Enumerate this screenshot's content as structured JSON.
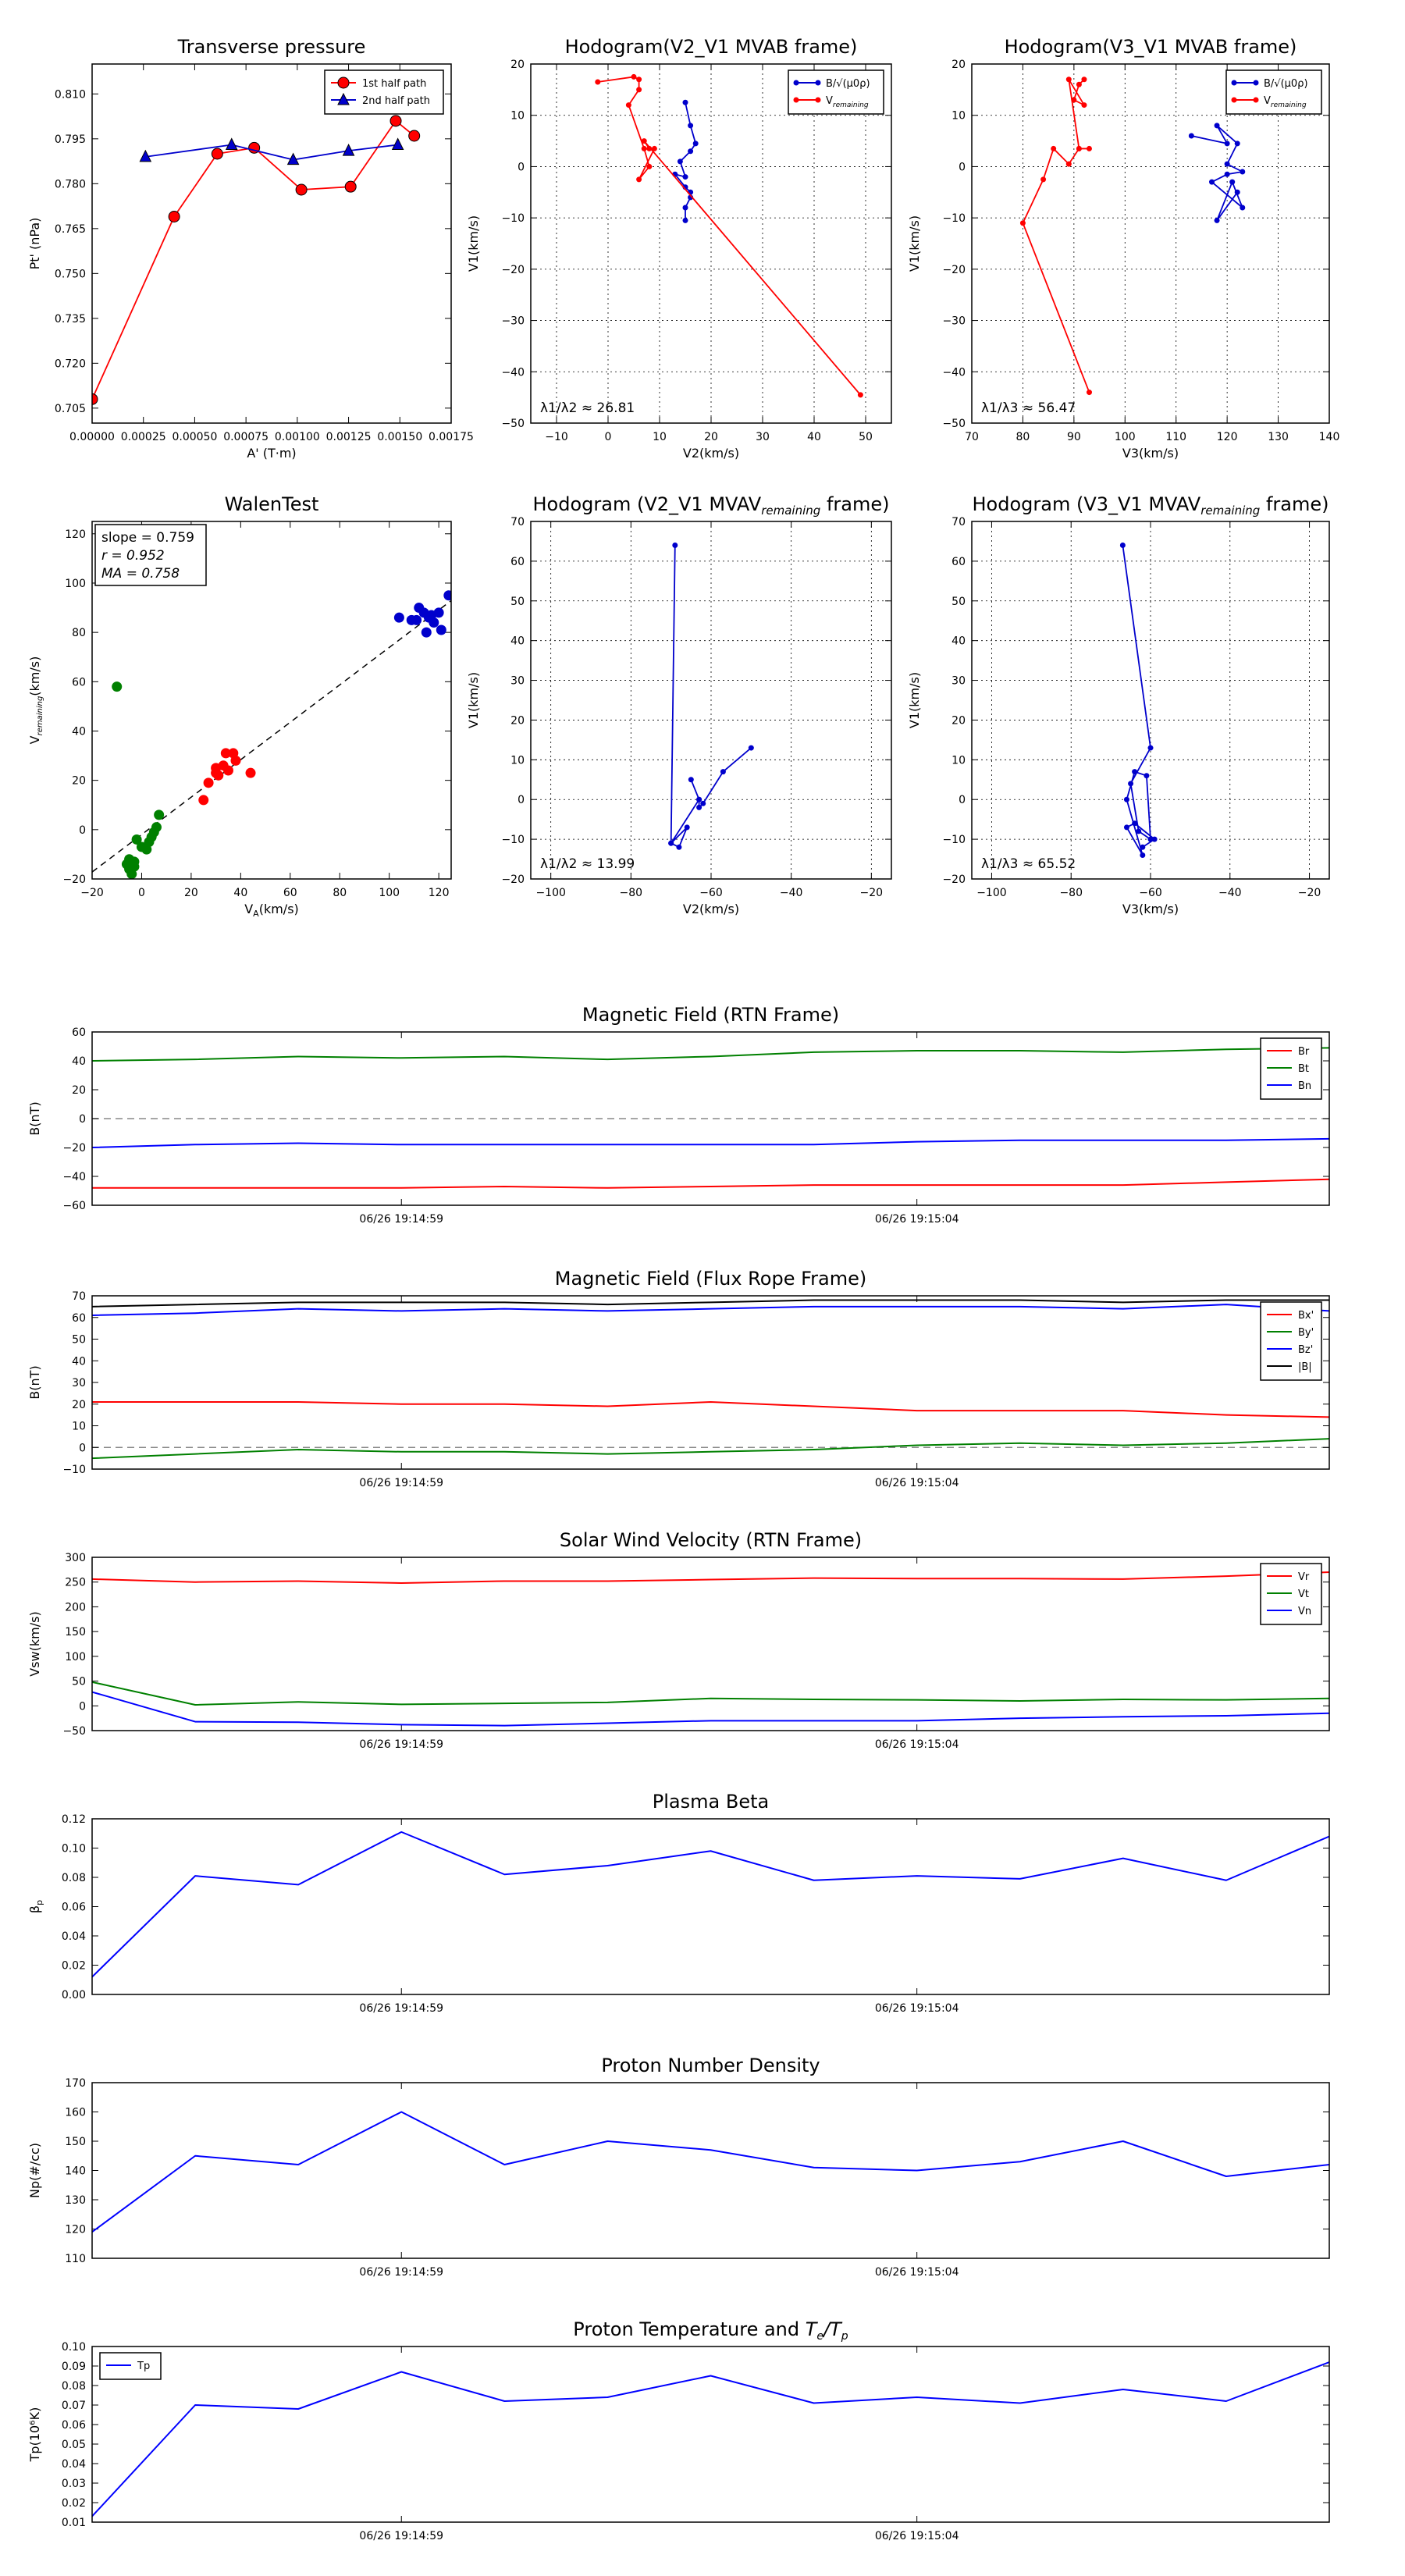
{
  "chart_data": [
    {
      "id": "tp",
      "type": "line",
      "title": "Transverse pressure",
      "xlabel": "A' (T·m)",
      "ylabel": "Pt' (nPa)",
      "xlim": [
        0,
        0.00175
      ],
      "ylim": [
        0.7,
        0.82
      ],
      "xticks": [
        0,
        0.00025,
        0.0005,
        0.00075,
        0.001,
        0.00125,
        0.0015,
        0.00175
      ],
      "xticklabels": [
        "0.00000",
        "0.00025",
        "0.00050",
        "0.00075",
        "0.00100",
        "0.00125",
        "0.00150",
        "0.00175"
      ],
      "yticks": [
        0.705,
        0.72,
        0.735,
        0.75,
        0.765,
        0.78,
        0.795,
        0.81
      ],
      "yticklabels": [
        "0.705",
        "0.720",
        "0.735",
        "0.750",
        "0.765",
        "0.780",
        "0.795",
        "0.810"
      ],
      "grid": false,
      "legend": "top-right",
      "series": [
        {
          "name": "1st half path",
          "color": "#ff0000",
          "marker": "circle",
          "x": [
            0,
            0.0004,
            0.00061,
            0.00079,
            0.00102,
            0.00126,
            0.00148,
            0.00157
          ],
          "y": [
            0.708,
            0.769,
            0.79,
            0.792,
            0.778,
            0.779,
            0.801,
            0.796
          ]
        },
        {
          "name": "2nd half path",
          "color": "#0000cc",
          "marker": "triangle",
          "x": [
            0.00026,
            0.00068,
            0.00098,
            0.00125,
            0.00149
          ],
          "y": [
            0.789,
            0.793,
            0.788,
            0.791,
            0.793
          ]
        }
      ]
    },
    {
      "id": "h1",
      "type": "line",
      "title": "Hodogram(V2_V1 MVAB frame)",
      "xlabel": "V2(km/s)",
      "ylabel": "V1(km/s)",
      "xlim": [
        -15,
        55
      ],
      "ylim": [
        -50,
        20
      ],
      "xticks": [
        -10,
        0,
        10,
        20,
        30,
        40,
        50
      ],
      "xticklabels": [
        "−10",
        "0",
        "10",
        "20",
        "30",
        "40",
        "50"
      ],
      "yticks": [
        -50,
        -40,
        -30,
        -20,
        -10,
        0,
        10,
        20
      ],
      "yticklabels": [
        "−50",
        "−40",
        "−30",
        "−20",
        "−10",
        "0",
        "10",
        "20"
      ],
      "grid": true,
      "legend": "top-right",
      "annotation": "λ1/λ2 ≈ 26.81",
      "series": [
        {
          "name": "B/√(μ0ρ)",
          "color": "#0000cc",
          "marker": "dot",
          "x": [
            15,
            16,
            17,
            16,
            14,
            15,
            13,
            15,
            16,
            16,
            15,
            15
          ],
          "y": [
            12.5,
            8,
            4.5,
            3,
            1,
            -2,
            -1.5,
            -4,
            -5,
            -6,
            -8,
            -10.5
          ]
        },
        {
          "name": "V_remaining",
          "color": "#ff0000",
          "marker": "dot",
          "x": [
            -2,
            5,
            6,
            6,
            4,
            7,
            8,
            6,
            9,
            8,
            7,
            49
          ],
          "y": [
            16.5,
            17.5,
            17,
            15,
            12,
            3.5,
            0,
            -2.5,
            3.5,
            3.5,
            5,
            -44.5
          ]
        }
      ]
    },
    {
      "id": "h2",
      "type": "line",
      "title": "Hodogram(V3_V1 MVAB frame)",
      "xlabel": "V3(km/s)",
      "ylabel": "V1(km/s)",
      "xlim": [
        70,
        140
      ],
      "ylim": [
        -50,
        20
      ],
      "xticks": [
        70,
        80,
        90,
        100,
        110,
        120,
        130,
        140
      ],
      "xticklabels": [
        "70",
        "80",
        "90",
        "100",
        "110",
        "120",
        "130",
        "140"
      ],
      "yticks": [
        -50,
        -40,
        -30,
        -20,
        -10,
        0,
        10,
        20
      ],
      "yticklabels": [
        "−50",
        "−40",
        "−30",
        "−20",
        "−10",
        "0",
        "10",
        "20"
      ],
      "grid": true,
      "legend": "top-right",
      "annotation": "λ1/λ3 ≈ 56.47",
      "series": [
        {
          "name": "B/√(μ0ρ)",
          "color": "#0000cc",
          "marker": "dot",
          "x": [
            113,
            120,
            118,
            122,
            120,
            123,
            120,
            117,
            123,
            121,
            118,
            122
          ],
          "y": [
            6,
            4.5,
            8,
            4.5,
            0.5,
            -1,
            -1.5,
            -3,
            -8,
            -3,
            -10.5,
            -5
          ]
        },
        {
          "name": "V_remaining",
          "color": "#ff0000",
          "marker": "dot",
          "x": [
            92,
            91,
            90,
            92,
            89,
            91,
            93,
            91,
            89,
            86,
            84,
            80,
            93
          ],
          "y": [
            17,
            16,
            13,
            12,
            17,
            3.5,
            3.5,
            3.5,
            0.5,
            3.5,
            -2.5,
            -11,
            -44
          ]
        }
      ]
    },
    {
      "id": "walen",
      "type": "scatter",
      "title": "WalenTest",
      "xlabel": "V_A(km/s)",
      "ylabel": "V_remaining(km/s)",
      "xlim": [
        -20,
        125
      ],
      "ylim": [
        -20,
        125
      ],
      "xticks": [
        -20,
        0,
        20,
        40,
        60,
        80,
        100,
        120
      ],
      "xticklabels": [
        "−20",
        "0",
        "20",
        "40",
        "60",
        "80",
        "100",
        "120"
      ],
      "yticks": [
        -20,
        0,
        20,
        40,
        60,
        80,
        100,
        120
      ],
      "yticklabels": [
        "−20",
        "0",
        "20",
        "40",
        "60",
        "80",
        "100",
        "120"
      ],
      "grid": false,
      "stats": [
        "slope = 0.759",
        "r = 0.952",
        "MA = 0.758"
      ],
      "fit": {
        "slope": 0.759,
        "intercept": -2.0
      },
      "series": [
        {
          "name": "green",
          "color": "#008000",
          "x": [
            -10,
            -5,
            -5,
            -3,
            -2,
            0,
            2,
            4,
            5,
            6,
            7,
            -4,
            -6,
            -3,
            3
          ],
          "y": [
            58,
            -12,
            -16,
            -15,
            -4,
            -7,
            -8,
            -3,
            -1,
            1,
            6,
            -18,
            -14,
            -13,
            -5
          ]
        },
        {
          "name": "red",
          "color": "#ff0000",
          "x": [
            25,
            27,
            30,
            30,
            31,
            33,
            34,
            35,
            37,
            38,
            44
          ],
          "y": [
            12,
            19,
            23,
            25,
            22,
            26,
            31,
            24,
            31,
            28,
            23
          ]
        },
        {
          "name": "blue",
          "color": "#0000cc",
          "x": [
            104,
            109,
            111,
            112,
            114,
            115,
            116,
            117,
            118,
            120,
            121,
            124
          ],
          "y": [
            86,
            85,
            85,
            90,
            88,
            80,
            86,
            87,
            84,
            88,
            81,
            95
          ]
        }
      ]
    },
    {
      "id": "h3",
      "type": "line",
      "title": "Hodogram (V2_V1 MVAV_remaining frame)",
      "xlabel": "V2(km/s)",
      "ylabel": "V1(km/s)",
      "xlim": [
        -105,
        -15
      ],
      "ylim": [
        -20,
        70
      ],
      "xticks": [
        -100,
        -80,
        -60,
        -40,
        -20
      ],
      "xticklabels": [
        "−100",
        "−80",
        "−60",
        "−40",
        "−20"
      ],
      "yticks": [
        -20,
        -10,
        0,
        10,
        20,
        30,
        40,
        50,
        60,
        70
      ],
      "yticklabels": [
        "−20",
        "−10",
        "0",
        "10",
        "20",
        "30",
        "40",
        "50",
        "60",
        "70"
      ],
      "grid": true,
      "annotation": "λ1/λ2 ≈ 13.99",
      "series": [
        {
          "name": "path",
          "color": "#0000cc",
          "marker": "dot",
          "x": [
            -69,
            -70,
            -66,
            -68,
            -70,
            -63,
            -65,
            -63,
            -63,
            -62,
            -57,
            -50
          ],
          "y": [
            64,
            -11,
            -7,
            -12,
            -11,
            0,
            5,
            0,
            -2,
            -1,
            7,
            13
          ]
        }
      ]
    },
    {
      "id": "h4",
      "type": "line",
      "title": "Hodogram (V3_V1 MVAV_remaining frame)",
      "xlabel": "V3(km/s)",
      "ylabel": "V1(km/s)",
      "xlim": [
        -105,
        -15
      ],
      "ylim": [
        -20,
        70
      ],
      "xticks": [
        -100,
        -80,
        -60,
        -40,
        -20
      ],
      "xticklabels": [
        "−100",
        "−80",
        "−60",
        "−40",
        "−20"
      ],
      "yticks": [
        -20,
        -10,
        0,
        10,
        20,
        30,
        40,
        50,
        60,
        70
      ],
      "yticklabels": [
        "−20",
        "−10",
        "0",
        "10",
        "20",
        "30",
        "40",
        "50",
        "60",
        "70"
      ],
      "grid": true,
      "annotation": "λ1/λ3 ≈ 65.52",
      "series": [
        {
          "name": "path",
          "color": "#0000cc",
          "marker": "dot",
          "x": [
            -67,
            -60,
            -65,
            -63,
            -60,
            -61,
            -64,
            -66,
            -62,
            -66,
            -64,
            -59,
            -62
          ],
          "y": [
            64,
            13,
            4,
            -8,
            -10,
            6,
            7,
            0,
            -14,
            -7,
            -6,
            -10,
            -12
          ]
        }
      ]
    },
    {
      "id": "mf_rtn",
      "type": "line",
      "title": "Magnetic Field (RTN Frame)",
      "ylabel": "B(nT)",
      "xlim": [
        0,
        12
      ],
      "ylim": [
        -60,
        60
      ],
      "xticks": [
        3,
        8
      ],
      "xticklabels": [
        "06/26 19:14:59",
        "06/26 19:15:04"
      ],
      "yticks": [
        -60,
        -40,
        -20,
        0,
        20,
        40,
        60
      ],
      "yticklabels": [
        "−60",
        "−40",
        "−20",
        "0",
        "20",
        "40",
        "60"
      ],
      "hline": 0,
      "legend": "top-right",
      "series": [
        {
          "name": "Br",
          "color": "#ff0000",
          "y": [
            -48,
            -48,
            -48,
            -48,
            -47,
            -48,
            -47,
            -46,
            -46,
            -46,
            -46,
            -44,
            -42
          ]
        },
        {
          "name": "Bt",
          "color": "#008000",
          "y": [
            40,
            41,
            43,
            42,
            43,
            41,
            43,
            46,
            47,
            47,
            46,
            48,
            49
          ]
        },
        {
          "name": "Bn",
          "color": "#0000ff",
          "y": [
            -20,
            -18,
            -17,
            -18,
            -18,
            -18,
            -18,
            -18,
            -16,
            -15,
            -15,
            -15,
            -14
          ]
        }
      ]
    },
    {
      "id": "mf_fr",
      "type": "line",
      "title": "Magnetic Field (Flux Rope Frame)",
      "ylabel": "B(nT)",
      "xlim": [
        0,
        12
      ],
      "ylim": [
        -10,
        70
      ],
      "xticks": [
        3,
        8
      ],
      "xticklabels": [
        "06/26 19:14:59",
        "06/26 19:15:04"
      ],
      "yticks": [
        -10,
        0,
        10,
        20,
        30,
        40,
        50,
        60,
        70
      ],
      "yticklabels": [
        "−10",
        "0",
        "10",
        "20",
        "30",
        "40",
        "50",
        "60",
        "70"
      ],
      "hline": 0,
      "legend": "top-right",
      "series": [
        {
          "name": "Bx'",
          "color": "#ff0000",
          "y": [
            21,
            21,
            21,
            20,
            20,
            19,
            21,
            19,
            17,
            17,
            17,
            15,
            14
          ]
        },
        {
          "name": "By'",
          "color": "#008000",
          "y": [
            -5,
            -3,
            -1,
            -2,
            -2,
            -3,
            -2,
            -1,
            1,
            2,
            1,
            2,
            4
          ]
        },
        {
          "name": "Bz'",
          "color": "#0000ff",
          "y": [
            61,
            62,
            64,
            63,
            64,
            63,
            64,
            65,
            65,
            65,
            64,
            66,
            63
          ]
        },
        {
          "name": "|B|",
          "color": "#000000",
          "y": [
            65,
            66,
            67,
            67,
            67,
            66,
            67,
            68,
            68,
            68,
            67,
            68,
            68
          ]
        }
      ]
    },
    {
      "id": "vsw",
      "type": "line",
      "title": "Solar Wind Velocity (RTN Frame)",
      "ylabel": "Vsw(km/s)",
      "xlim": [
        0,
        12
      ],
      "ylim": [
        -50,
        300
      ],
      "xticks": [
        3,
        8
      ],
      "xticklabels": [
        "06/26 19:14:59",
        "06/26 19:15:04"
      ],
      "yticks": [
        -50,
        0,
        50,
        100,
        150,
        200,
        250,
        300
      ],
      "yticklabels": [
        "−50",
        "0",
        "50",
        "100",
        "150",
        "200",
        "250",
        "300"
      ],
      "legend": "top-right",
      "series": [
        {
          "name": "Vr",
          "color": "#ff0000",
          "y": [
            256,
            250,
            252,
            248,
            252,
            252,
            255,
            258,
            257,
            257,
            256,
            262,
            270
          ]
        },
        {
          "name": "Vt",
          "color": "#008000",
          "y": [
            48,
            2,
            8,
            3,
            5,
            7,
            15,
            13,
            12,
            10,
            13,
            12,
            15
          ]
        },
        {
          "name": "Vn",
          "color": "#0000ff",
          "y": [
            28,
            -32,
            -33,
            -38,
            -40,
            -35,
            -30,
            -30,
            -30,
            -25,
            -22,
            -20,
            -15
          ]
        }
      ]
    },
    {
      "id": "beta",
      "type": "line",
      "title": "Plasma Beta",
      "ylabel": "βp",
      "xlim": [
        0,
        12
      ],
      "ylim": [
        0,
        0.12
      ],
      "xticks": [
        3,
        8
      ],
      "xticklabels": [
        "06/26 19:14:59",
        "06/26 19:15:04"
      ],
      "yticks": [
        0,
        0.02,
        0.04,
        0.06,
        0.08,
        0.1,
        0.12
      ],
      "yticklabels": [
        "0.00",
        "0.02",
        "0.04",
        "0.06",
        "0.08",
        "0.10",
        "0.12"
      ],
      "series": [
        {
          "name": "beta",
          "color": "#0000ff",
          "y": [
            0.012,
            0.081,
            0.075,
            0.111,
            0.082,
            0.088,
            0.098,
            0.078,
            0.081,
            0.079,
            0.093,
            0.078,
            0.108
          ]
        }
      ]
    },
    {
      "id": "np",
      "type": "line",
      "title": "Proton Number Density",
      "ylabel": "Np(#/cc)",
      "xlim": [
        0,
        12
      ],
      "ylim": [
        110,
        170
      ],
      "xticks": [
        3,
        8
      ],
      "xticklabels": [
        "06/26 19:14:59",
        "06/26 19:15:04"
      ],
      "yticks": [
        110,
        120,
        130,
        140,
        150,
        160,
        170
      ],
      "yticklabels": [
        "110",
        "120",
        "130",
        "140",
        "150",
        "160",
        "170"
      ],
      "series": [
        {
          "name": "Np",
          "color": "#0000ff",
          "y": [
            119,
            145,
            142,
            160,
            142,
            150,
            147,
            141,
            140,
            143,
            150,
            138,
            142
          ]
        }
      ]
    },
    {
      "id": "temp",
      "type": "line",
      "title": "Proton Temperature and Te/Tp",
      "ylabel": "Tp(10⁶K)",
      "xlim": [
        0,
        12
      ],
      "ylim": [
        0.01,
        0.1
      ],
      "xticks": [
        3,
        8
      ],
      "xticklabels": [
        "06/26 19:14:59",
        "06/26 19:15:04"
      ],
      "yticks": [
        0.01,
        0.02,
        0.03,
        0.04,
        0.05,
        0.06,
        0.07,
        0.08,
        0.09,
        0.1
      ],
      "yticklabels": [
        "0.01",
        "0.02",
        "0.03",
        "0.04",
        "0.05",
        "0.06",
        "0.07",
        "0.08",
        "0.09",
        "0.10"
      ],
      "legend": "top-left",
      "series": [
        {
          "name": "Tp",
          "color": "#0000ff",
          "y": [
            0.013,
            0.07,
            0.068,
            0.087,
            0.072,
            0.074,
            0.085,
            0.071,
            0.074,
            0.071,
            0.078,
            0.072,
            0.092
          ]
        }
      ]
    }
  ]
}
